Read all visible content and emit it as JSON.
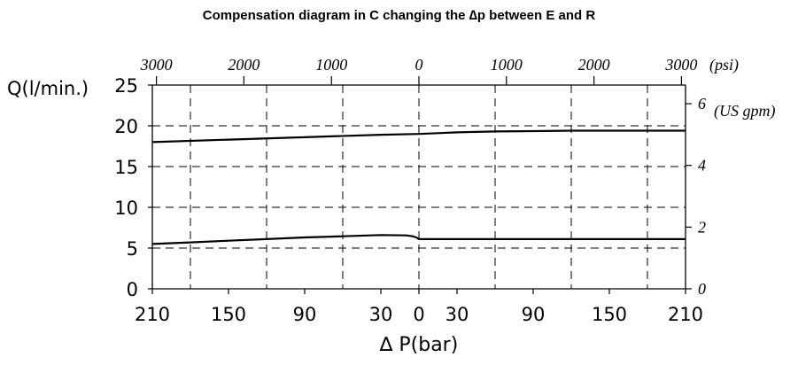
{
  "chart_data": {
    "type": "line",
    "title": "Compensation diagram in C changing the ∆p between E and R",
    "xlabel": "∆ P(bar)",
    "ylabel": "Q(l/min.)",
    "top_axis_unit": "(psi)",
    "right_axis_unit": "(US gpm)",
    "x_axis": {
      "range": [
        -210,
        210
      ],
      "tick_values": [
        -210,
        -150,
        -90,
        -30,
        0,
        30,
        90,
        150,
        210
      ],
      "tick_labels": [
        "210",
        "150",
        "90",
        "30",
        "0",
        "30",
        "90",
        "150",
        "210"
      ]
    },
    "y_axis": {
      "range": [
        0,
        25
      ],
      "tick_values": [
        0,
        5,
        10,
        15,
        20,
        25
      ],
      "tick_labels": [
        "0",
        "5",
        "10",
        "15",
        "20",
        "25"
      ]
    },
    "top_axis": {
      "tick_values_bar": [
        -206.8,
        -137.9,
        -68.9,
        0,
        68.9,
        137.9,
        206.8
      ],
      "tick_labels": [
        "3000",
        "2000",
        "1000",
        "0",
        "1000",
        "2000",
        "3000"
      ]
    },
    "right_axis": {
      "tick_values_lmin": [
        0,
        7.57,
        15.14,
        22.71
      ],
      "tick_labels": [
        "0",
        "2",
        "4",
        "6"
      ]
    },
    "grid": {
      "vertical_bar": [
        -180,
        -120,
        -60,
        0,
        60,
        120,
        180
      ],
      "horizontal_lmin": [
        5,
        10,
        15,
        20
      ]
    },
    "series": [
      {
        "x": [
          -210,
          -150,
          -90,
          -30,
          0,
          30,
          60,
          90,
          120,
          150,
          180,
          210
        ],
        "y": [
          18.0,
          18.3,
          18.6,
          18.9,
          19.0,
          19.2,
          19.3,
          19.35,
          19.4,
          19.4,
          19.4,
          19.4
        ]
      },
      {
        "x": [
          -210,
          -180,
          -150,
          -120,
          -90,
          -60,
          -30,
          -10,
          -5,
          -2,
          0,
          30,
          90,
          150,
          210
        ],
        "y": [
          5.5,
          5.7,
          5.9,
          6.1,
          6.3,
          6.45,
          6.6,
          6.55,
          6.45,
          6.3,
          6.1,
          6.1,
          6.1,
          6.1,
          6.1
        ]
      }
    ]
  }
}
